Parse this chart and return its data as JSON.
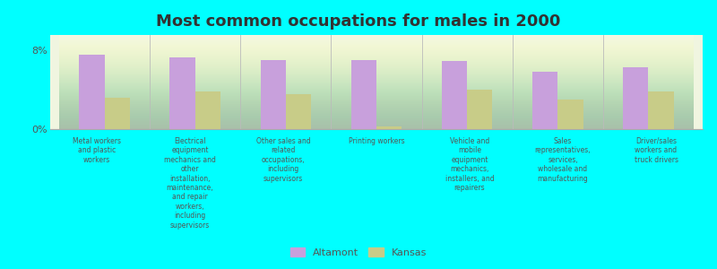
{
  "title": "Most common occupations for males in 2000",
  "categories": [
    "Metal workers\nand plastic\nworkers",
    "Electrical\nequipment\nmechanics and\nother\ninstallation,\nmaintenance,\nand repair\nworkers,\nincluding\nsupervisors",
    "Other sales and\nrelated\noccupations,\nincluding\nsupervisors",
    "Printing workers",
    "Vehicle and\nmobile\nequipment\nmechanics,\ninstallers, and\nrepairers",
    "Sales\nrepresentatives,\nservices,\nwholesale and\nmanufacturing",
    "Driver/sales\nworkers and\ntruck drivers"
  ],
  "altamont_values": [
    7.5,
    7.2,
    7.0,
    7.0,
    6.9,
    5.8,
    6.2
  ],
  "kansas_values": [
    3.2,
    3.8,
    3.5,
    0.3,
    4.0,
    3.0,
    3.8
  ],
  "altamont_color": "#c8a0dc",
  "kansas_color": "#c8cc88",
  "background_color": "#00ffff",
  "ylim": [
    0,
    9.5
  ],
  "ytick_vals": [
    0,
    8
  ],
  "ytick_labels": [
    "0%",
    "8%"
  ],
  "bar_width": 0.28,
  "legend_labels": [
    "Altamont",
    "Kansas"
  ],
  "title_fontsize": 13,
  "tick_fontsize": 6,
  "legend_fontsize": 8
}
